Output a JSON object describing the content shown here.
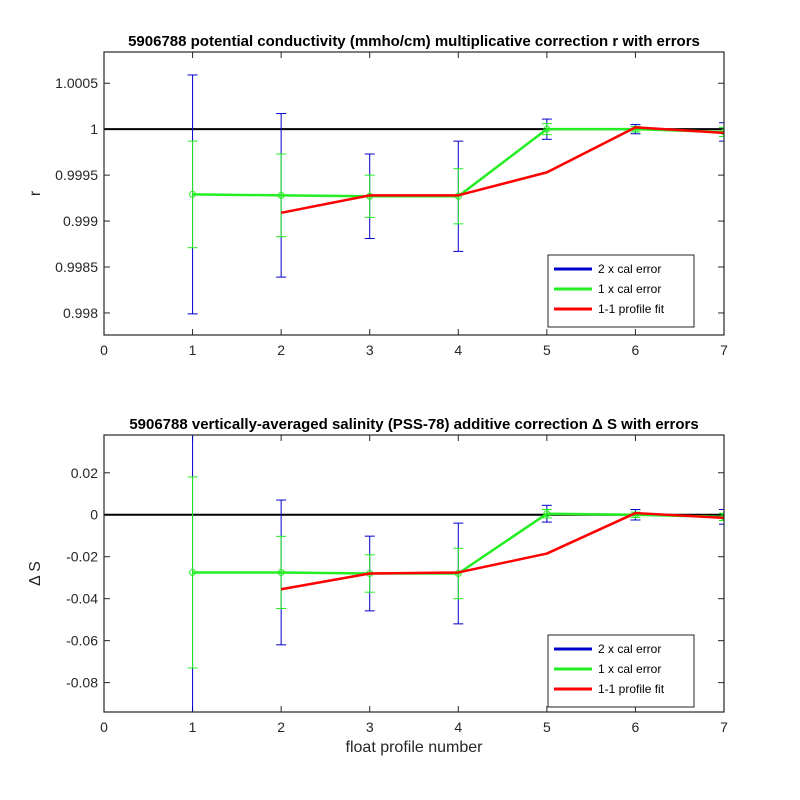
{
  "chart_data": [
    {
      "type": "line",
      "title": "5906788 potential conductivity (mmho/cm) multiplicative correction r with errors",
      "xlabel": "",
      "ylabel": "r",
      "xlim": [
        0,
        7
      ],
      "ylim": [
        0.99776,
        1.00084
      ],
      "xticks": [
        "0",
        "1",
        "2",
        "3",
        "4",
        "5",
        "6",
        "7"
      ],
      "yticks": [
        {
          "value": 0.998,
          "label": "0.998"
        },
        {
          "value": 0.9985,
          "label": "0.9985"
        },
        {
          "value": 0.999,
          "label": "0.999"
        },
        {
          "value": 0.9995,
          "label": "0.9995"
        },
        {
          "value": 1.0,
          "label": "1"
        },
        {
          "value": 1.0005,
          "label": "1.0005"
        }
      ],
      "reference_line": 1,
      "legend_position": "bottom-right",
      "series": [
        {
          "name": "2 x cal error",
          "color": "#0000cc",
          "x": [
            1,
            2,
            3,
            4,
            5,
            6,
            7
          ],
          "y": [
            0.99929,
            0.99928,
            0.99927,
            0.99927,
            1.0,
            1.0,
            0.99997
          ],
          "err": [
            0.0013,
            0.00089,
            0.00046,
            0.0006,
            0.00011,
            5e-05,
            0.0001
          ],
          "show_line": false
        },
        {
          "name": "1 x cal error",
          "color": "#22ee22",
          "x": [
            1,
            2,
            3,
            4,
            5,
            6,
            7
          ],
          "y": [
            0.99929,
            0.99928,
            0.99927,
            0.99927,
            1.0,
            1.0,
            0.99997
          ],
          "err": [
            0.00058,
            0.00045,
            0.00023,
            0.0003,
            6e-05,
            3e-05,
            5e-05
          ],
          "show_line": true
        },
        {
          "name": "1-1 profile fit",
          "color": "#ff0000",
          "x": [
            2,
            3,
            4,
            5,
            6,
            7
          ],
          "y": [
            0.99909,
            0.99928,
            0.99928,
            0.99953,
            1.00002,
            0.99996
          ],
          "show_line": true
        }
      ]
    },
    {
      "type": "line",
      "title": "5906788 vertically-averaged salinity (PSS-78) additive correction Δ S with errors",
      "xlabel": "float profile number",
      "ylabel": "Δ S",
      "xlim": [
        0,
        7
      ],
      "ylim": [
        -0.094,
        0.038
      ],
      "xticks": [
        "0",
        "1",
        "2",
        "3",
        "4",
        "5",
        "6",
        "7"
      ],
      "yticks": [
        {
          "value": -0.08,
          "label": "-0.08"
        },
        {
          "value": -0.06,
          "label": "-0.06"
        },
        {
          "value": -0.04,
          "label": "-0.04"
        },
        {
          "value": -0.02,
          "label": "-0.02"
        },
        {
          "value": 0,
          "label": "0"
        },
        {
          "value": 0.02,
          "label": "0.02"
        }
      ],
      "reference_line": 0,
      "legend_position": "bottom-right",
      "series": [
        {
          "name": "2 x cal error",
          "color": "#0000cc",
          "x": [
            1,
            2,
            3,
            4,
            5,
            6,
            7
          ],
          "y": [
            -0.0275,
            -0.0275,
            -0.028,
            -0.028,
            0.0005,
            0.0,
            -0.001
          ],
          "err": [
            0.091,
            0.0345,
            0.0178,
            0.024,
            0.004,
            0.0025,
            0.0035
          ],
          "show_line": false
        },
        {
          "name": "1 x cal error",
          "color": "#22ee22",
          "x": [
            1,
            2,
            3,
            4,
            5,
            6,
            7
          ],
          "y": [
            -0.0275,
            -0.0275,
            -0.028,
            -0.028,
            0.0005,
            0.0,
            -0.001
          ],
          "err": [
            0.0455,
            0.0172,
            0.0089,
            0.012,
            0.002,
            0.00125,
            0.00175
          ],
          "show_line": true
        },
        {
          "name": "1-1 profile fit",
          "color": "#ff0000",
          "x": [
            2,
            3,
            4,
            5,
            6,
            7
          ],
          "y": [
            -0.0355,
            -0.028,
            -0.0275,
            -0.0185,
            0.0008,
            -0.0015
          ],
          "show_line": true
        }
      ]
    }
  ]
}
